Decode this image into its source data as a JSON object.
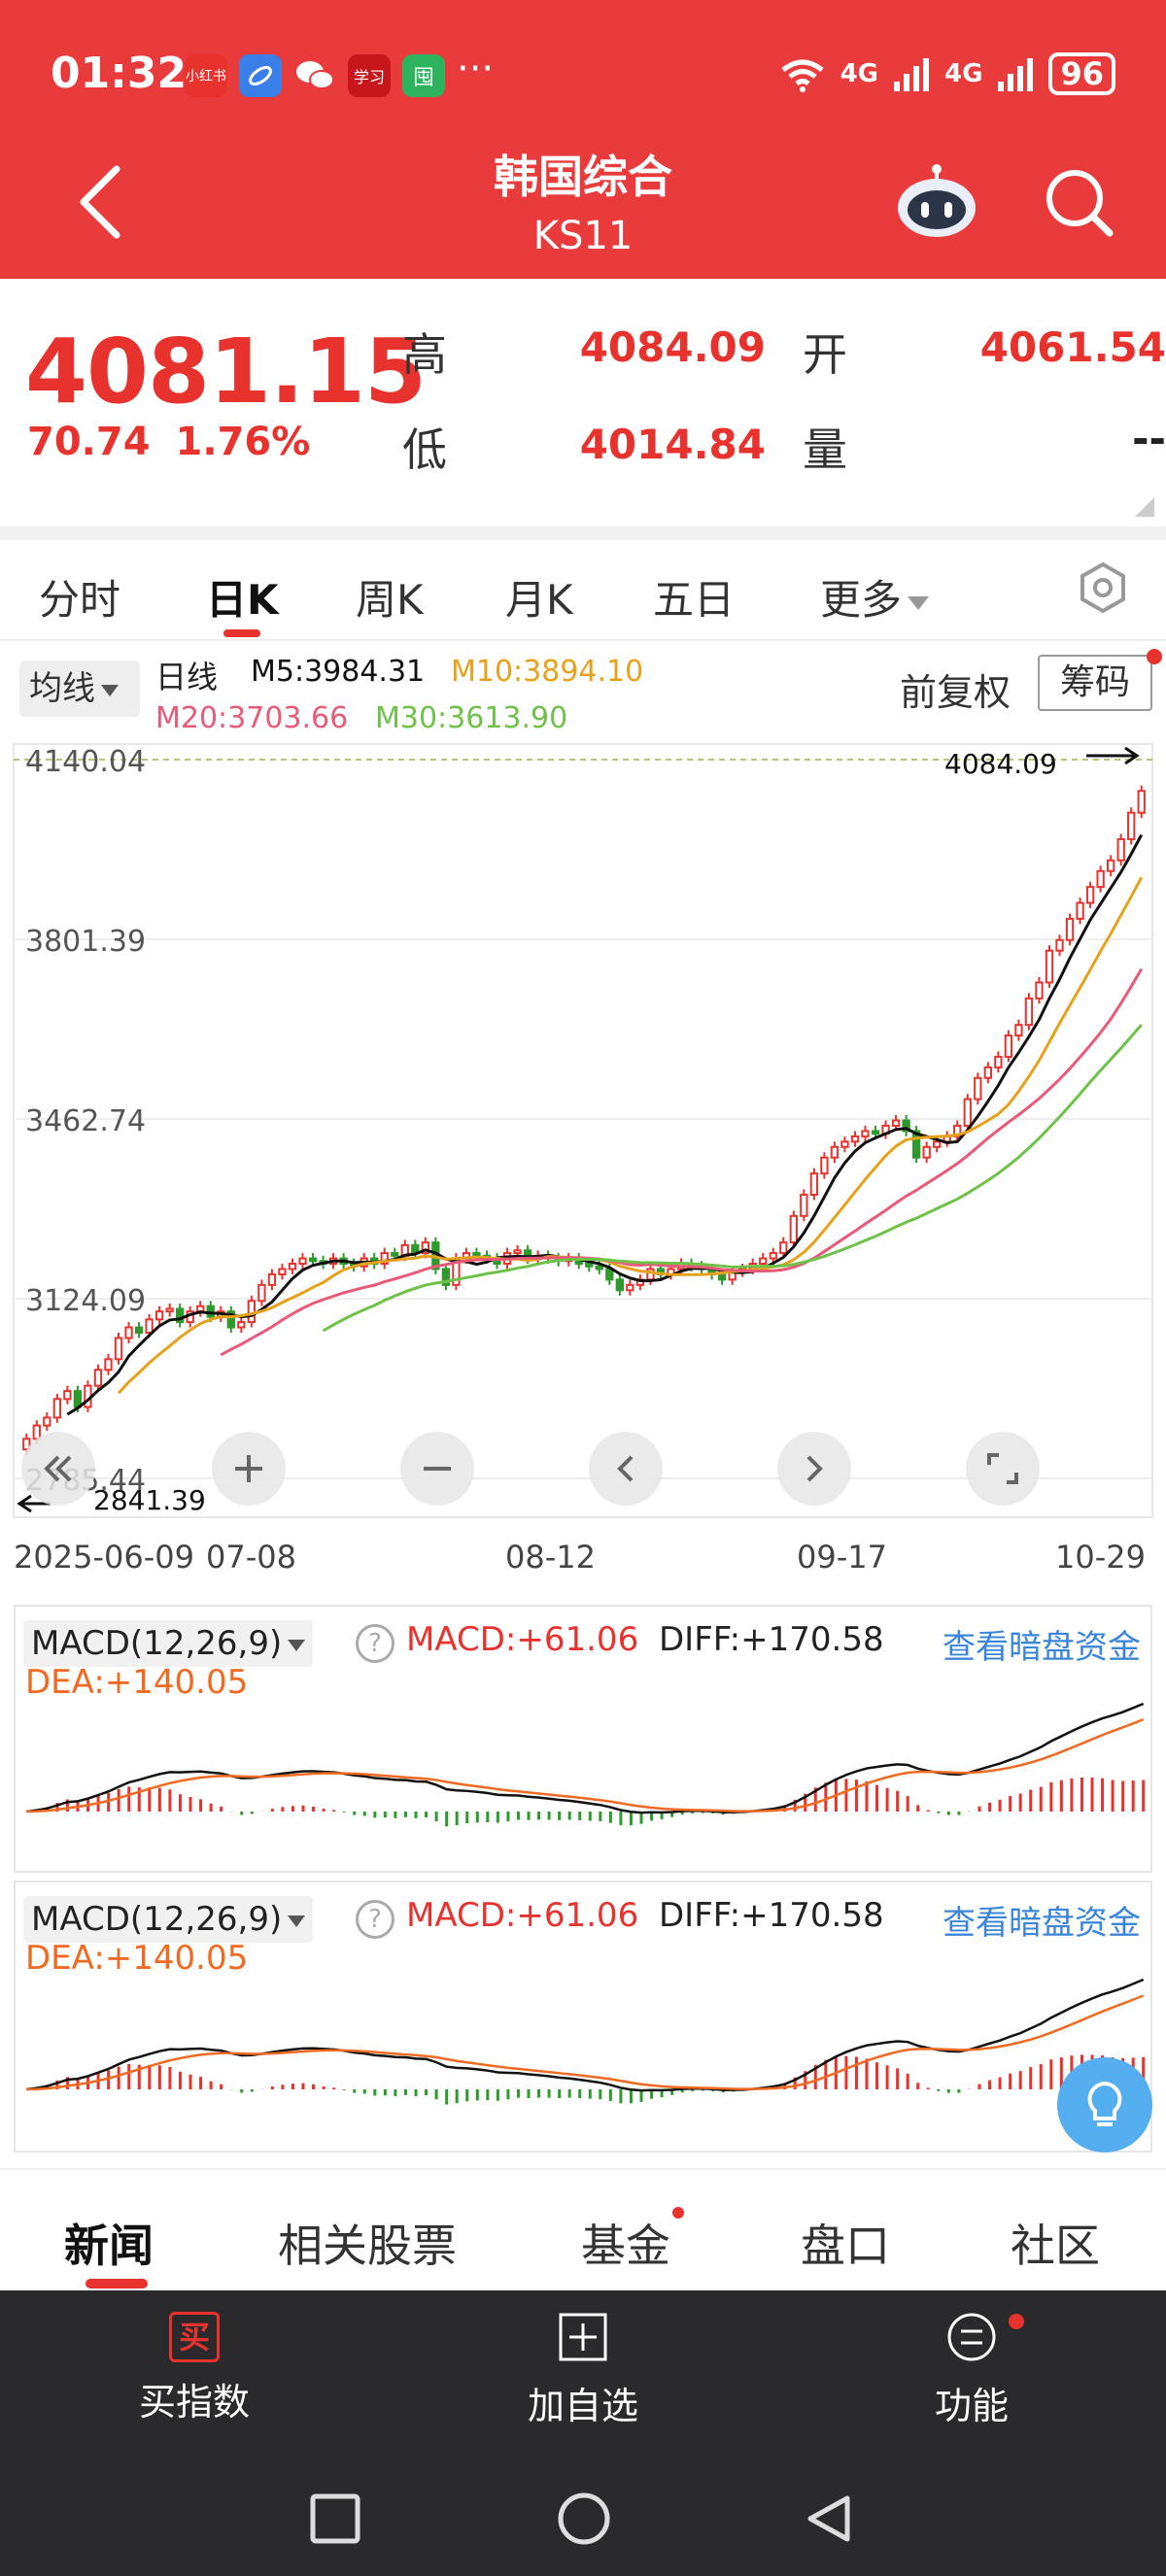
{
  "status_bar": {
    "time": "01:32",
    "apps": [
      {
        "icon": "xiaohongshu-icon",
        "text": "小红书",
        "color": "#e8322d"
      },
      {
        "icon": "browser-icon",
        "text": "",
        "color": "#3a7ee8"
      },
      {
        "icon": "wechat-icon",
        "text": "",
        "color": "#ea3b3c"
      },
      {
        "icon": "xuexi-icon",
        "text": "学习",
        "color": "#c8161d"
      },
      {
        "icon": "shopping-icon",
        "text": "囤",
        "color": "#2db35d"
      }
    ],
    "more": "···",
    "net1": "4G",
    "net2": "4G",
    "battery": "96"
  },
  "header": {
    "title": "韩国综合",
    "code": "KS11"
  },
  "quote": {
    "price": "4081.15",
    "change": "70.74",
    "change_pct": "1.76%",
    "high_label": "高",
    "high": "4084.09",
    "open_label": "开",
    "open": "4061.54",
    "low_label": "低",
    "low": "4014.84",
    "vol_label": "量",
    "vol": "--"
  },
  "period_tabs": [
    "分时",
    "日K",
    "周K",
    "月K",
    "五日",
    "更多"
  ],
  "legend": {
    "ma_button": "均线",
    "kind": "日线",
    "m5": "M5:3984.31",
    "m10": "M10:3894.10",
    "m20": "M20:3703.66",
    "m30": "M30:3613.90",
    "adjust": "前复权",
    "chips": "筹码"
  },
  "chart_data": {
    "type": "candlestick",
    "y_tick_labels": [
      "4140.04",
      "3801.39",
      "3462.74",
      "3124.09",
      "2785.44"
    ],
    "ylim": [
      2785.44,
      4140.04
    ],
    "max_marker": "4084.09",
    "min_marker": "2841.39",
    "x_labels": [
      "2025-06-09",
      "07-08",
      "08-12",
      "09-17",
      "10-29"
    ],
    "closes": [
      2860,
      2885,
      2900,
      2935,
      2950,
      2920,
      2960,
      2990,
      3010,
      3050,
      3070,
      3060,
      3085,
      3100,
      3105,
      3080,
      3100,
      3110,
      3090,
      3100,
      3070,
      3080,
      3120,
      3150,
      3170,
      3180,
      3190,
      3200,
      3195,
      3190,
      3200,
      3190,
      3185,
      3200,
      3190,
      3210,
      3205,
      3225,
      3210,
      3230,
      3180,
      3150,
      3200,
      3210,
      3205,
      3200,
      3190,
      3210,
      3215,
      3200,
      3205,
      3200,
      3195,
      3200,
      3190,
      3185,
      3180,
      3160,
      3140,
      3150,
      3160,
      3180,
      3170,
      3180,
      3190,
      3185,
      3180,
      3170,
      3160,
      3175,
      3180,
      3190,
      3200,
      3210,
      3230,
      3280,
      3320,
      3360,
      3390,
      3410,
      3420,
      3430,
      3440,
      3435,
      3450,
      3460,
      3440,
      3390,
      3410,
      3420,
      3430,
      3450,
      3500,
      3540,
      3560,
      3580,
      3620,
      3640,
      3690,
      3720,
      3780,
      3800,
      3840,
      3870,
      3900,
      3930,
      3950,
      3990,
      4040,
      4081
    ]
  },
  "chart_controls": [
    "collapse-left",
    "zoom-in",
    "zoom-out",
    "pan-left",
    "pan-right",
    "fullscreen"
  ],
  "macd": {
    "selector": "MACD(12,26,9)",
    "help": "?",
    "macd": "MACD:+61.06",
    "diff": "DIFF:+170.58",
    "dea": "DEA:+140.05",
    "link": "查看暗盘资金"
  },
  "content_tabs": [
    "新闻",
    "相关股票",
    "基金",
    "盘口",
    "社区"
  ],
  "actions": {
    "buy_icon_text": "买",
    "buy": "买指数",
    "add": "加自选",
    "menu": "功能"
  },
  "colors": {
    "brand_red": "#ea3b3c",
    "up": "#e8322d",
    "down": "#2e9a2e",
    "m5": "#111111",
    "m10": "#e6a21c",
    "m20": "#e85a78",
    "m30": "#6ec24a",
    "dea": "#f06a22",
    "link": "#3b86d9"
  }
}
